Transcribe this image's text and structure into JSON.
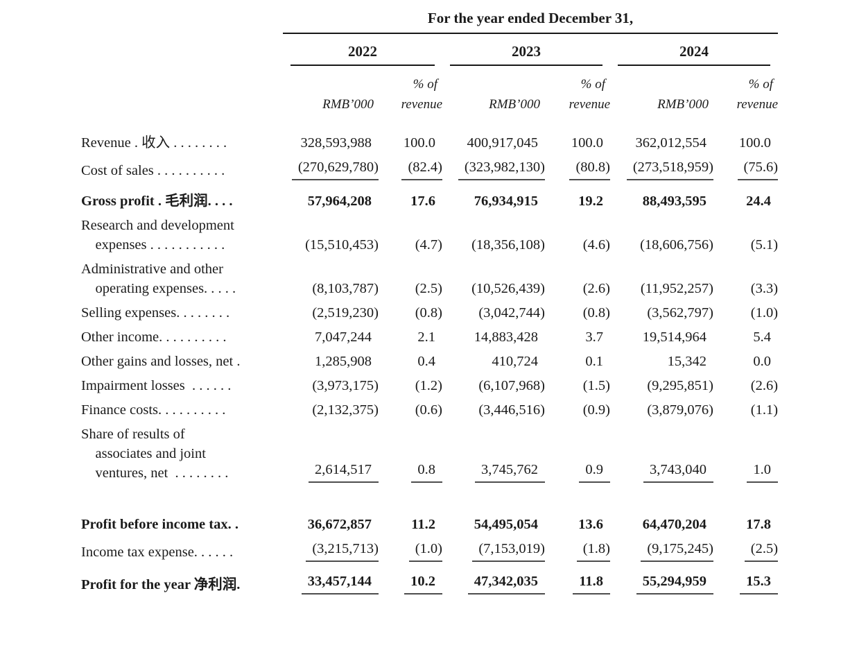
{
  "header": {
    "title": "For the year ended December 31,",
    "years": [
      "2022",
      "2023",
      "2024"
    ],
    "value_unit": "RMB’000",
    "pct_line1": "% of",
    "pct_line2": "revenue"
  },
  "rows": [
    {
      "label": "Revenue . 收入 . . . . . . . .",
      "v2022": "328,593,988",
      "p2022": "100.0",
      "v2023": "400,917,045",
      "p2023": "100.0",
      "v2024": "362,012,554",
      "p2024": "100.0"
    },
    {
      "label": "Cost of sales . . . . . . . . . .",
      "v2022": "(270,629,780)",
      "p2022": "(82.4)",
      "v2023": "(323,982,130)",
      "p2023": "(80.8)",
      "v2024": "(273,518,959)",
      "p2024": "(75.6)"
    },
    {
      "label": "Gross profit . 毛利润. . . .",
      "v2022": "57,964,208",
      "p2022": "17.6",
      "v2023": "76,934,915",
      "p2023": "19.2",
      "v2024": "88,493,595",
      "p2024": "24.4"
    },
    {
      "label": "Research and development\n    expenses . . . . . . . . . . .",
      "v2022": "(15,510,453)",
      "p2022": "(4.7)",
      "v2023": "(18,356,108)",
      "p2023": "(4.6)",
      "v2024": "(18,606,756)",
      "p2024": "(5.1)"
    },
    {
      "label": "Administrative and other\n    operating expenses. . . . .",
      "v2022": "(8,103,787)",
      "p2022": "(2.5)",
      "v2023": "(10,526,439)",
      "p2023": "(2.6)",
      "v2024": "(11,952,257)",
      "p2024": "(3.3)"
    },
    {
      "label": "Selling expenses. . . . . . . .",
      "v2022": "(2,519,230)",
      "p2022": "(0.8)",
      "v2023": "(3,042,744)",
      "p2023": "(0.8)",
      "v2024": "(3,562,797)",
      "p2024": "(1.0)"
    },
    {
      "label": "Other income. . . . . . . . . .",
      "v2022": "7,047,244",
      "p2022": "2.1",
      "v2023": "14,883,428",
      "p2023": "3.7",
      "v2024": "19,514,964",
      "p2024": "5.4"
    },
    {
      "label": "Other gains and losses, net .",
      "v2022": "1,285,908",
      "p2022": "0.4",
      "v2023": "410,724",
      "p2023": "0.1",
      "v2024": "15,342",
      "p2024": "0.0"
    },
    {
      "label": "Impairment losses  . . . . . .",
      "v2022": "(3,973,175)",
      "p2022": "(1.2)",
      "v2023": "(6,107,968)",
      "p2023": "(1.5)",
      "v2024": "(9,295,851)",
      "p2024": "(2.6)"
    },
    {
      "label": "Finance costs. . . . . . . . . .",
      "v2022": "(2,132,375)",
      "p2022": "(0.6)",
      "v2023": "(3,446,516)",
      "p2023": "(0.9)",
      "v2024": "(3,879,076)",
      "p2024": "(1.1)"
    },
    {
      "label": "Share of results of\n    associates and joint\n    ventures, net  . . . . . . . .",
      "v2022": "2,614,517",
      "p2022": "0.8",
      "v2023": "3,745,762",
      "p2023": "0.9",
      "v2024": "3,743,040",
      "p2024": "1.0"
    },
    {
      "label": "Profit before income tax. .",
      "v2022": "36,672,857",
      "p2022": "11.2",
      "v2023": "54,495,054",
      "p2023": "13.6",
      "v2024": "64,470,204",
      "p2024": "17.8"
    },
    {
      "label": "Income tax expense. . . . . .",
      "v2022": "(3,215,713)",
      "p2022": "(1.0)",
      "v2023": "(7,153,019)",
      "p2023": "(1.8)",
      "v2024": "(9,175,245)",
      "p2024": "(2.5)"
    },
    {
      "label": "Profit for the year 净利润.",
      "v2022": "33,457,144",
      "p2022": "10.2",
      "v2023": "47,342,035",
      "p2023": "11.8",
      "v2024": "55,294,959",
      "p2024": "15.3"
    }
  ]
}
